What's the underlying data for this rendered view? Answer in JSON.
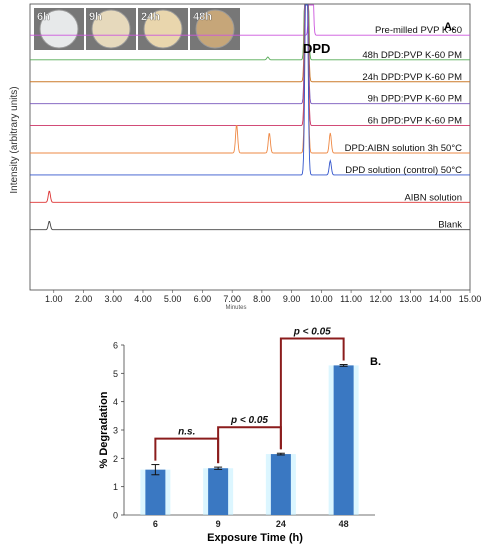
{
  "chart_data": [
    {
      "type": "line",
      "panel_label": "A.",
      "ylabel": "Intensity (arbitrary units)",
      "xlabel": "Minutes",
      "xlim": [
        0.2,
        15.0
      ],
      "x_ticks": [
        "1.00",
        "2.00",
        "3.00",
        "4.00",
        "5.00",
        "6.00",
        "7.00",
        "8.00",
        "9.00",
        "10.00",
        "11.00",
        "12.00",
        "13.00",
        "14.00",
        "15.00"
      ],
      "peak_label": "DPD",
      "peak_retention_min": 9.5,
      "inset_photos": [
        {
          "label": "6h",
          "tone": "#e7e9ea"
        },
        {
          "label": "9h",
          "tone": "#e6d9bc"
        },
        {
          "label": "24h",
          "tone": "#e9d6ad"
        },
        {
          "label": "48h",
          "tone": "#c6a679"
        }
      ],
      "series": [
        {
          "name": "Pre-milled PVP K-60",
          "color": "#cc55dd",
          "baseline": 0.93,
          "peaks": [
            [
              9.65,
              1.0
            ]
          ]
        },
        {
          "name": "48h DPD:PVP K-60 PM",
          "color": "#55aa55",
          "baseline": 0.84,
          "peaks": [
            [
              9.5,
              1.0
            ],
            [
              8.2,
              0.01
            ]
          ]
        },
        {
          "name": "24h DPD:PVP K-60 PM",
          "color": "#cc7a2a",
          "baseline": 0.76,
          "peaks": [
            [
              9.5,
              1.0
            ]
          ]
        },
        {
          "name": "9h DPD:PVP K-60 PM",
          "color": "#7755bb",
          "baseline": 0.68,
          "peaks": [
            [
              9.5,
              1.0
            ]
          ]
        },
        {
          "name": "6h DPD:PVP K-60 PM",
          "color": "#cc3366",
          "baseline": 0.6,
          "peaks": [
            [
              9.5,
              1.0
            ]
          ]
        },
        {
          "name": "DPD:AIBN solution 3h 50°C",
          "color": "#ee8844",
          "baseline": 0.5,
          "peaks": [
            [
              7.15,
              0.1
            ],
            [
              8.25,
              0.07
            ],
            [
              9.5,
              1.0
            ],
            [
              10.3,
              0.07
            ]
          ]
        },
        {
          "name": "DPD solution (control) 50°C",
          "color": "#3355cc",
          "baseline": 0.42,
          "peaks": [
            [
              9.5,
              1.0
            ],
            [
              10.3,
              0.05
            ]
          ]
        },
        {
          "name": "AIBN solution",
          "color": "#dd3333",
          "baseline": 0.32,
          "peaks": [
            [
              0.85,
              0.04
            ]
          ]
        },
        {
          "name": "Blank",
          "color": "#444444",
          "baseline": 0.22,
          "peaks": [
            [
              0.85,
              0.03
            ]
          ]
        }
      ]
    },
    {
      "type": "bar",
      "panel_label": "B.",
      "xlabel": "Exposure Time (h)",
      "ylabel": "% Degradation",
      "categories": [
        "6",
        "9",
        "24",
        "48"
      ],
      "values": [
        1.6,
        1.65,
        2.15,
        5.28
      ],
      "errors": [
        0.18,
        0.04,
        0.03,
        0.03
      ],
      "ylim": [
        0,
        6
      ],
      "y_ticks": [
        "0",
        "1",
        "2",
        "3",
        "4",
        "5",
        "6"
      ],
      "bar_color": "#3a78c2",
      "glow_color": "#bfefff",
      "annotations": [
        {
          "text": "n.s.",
          "from": 0,
          "to": 1
        },
        {
          "text": "p < 0.05",
          "from": 1,
          "to": 2
        },
        {
          "text": "p < 0.05",
          "from": 2,
          "to": 3
        }
      ],
      "bracket_color": "#8b1c1c"
    }
  ]
}
